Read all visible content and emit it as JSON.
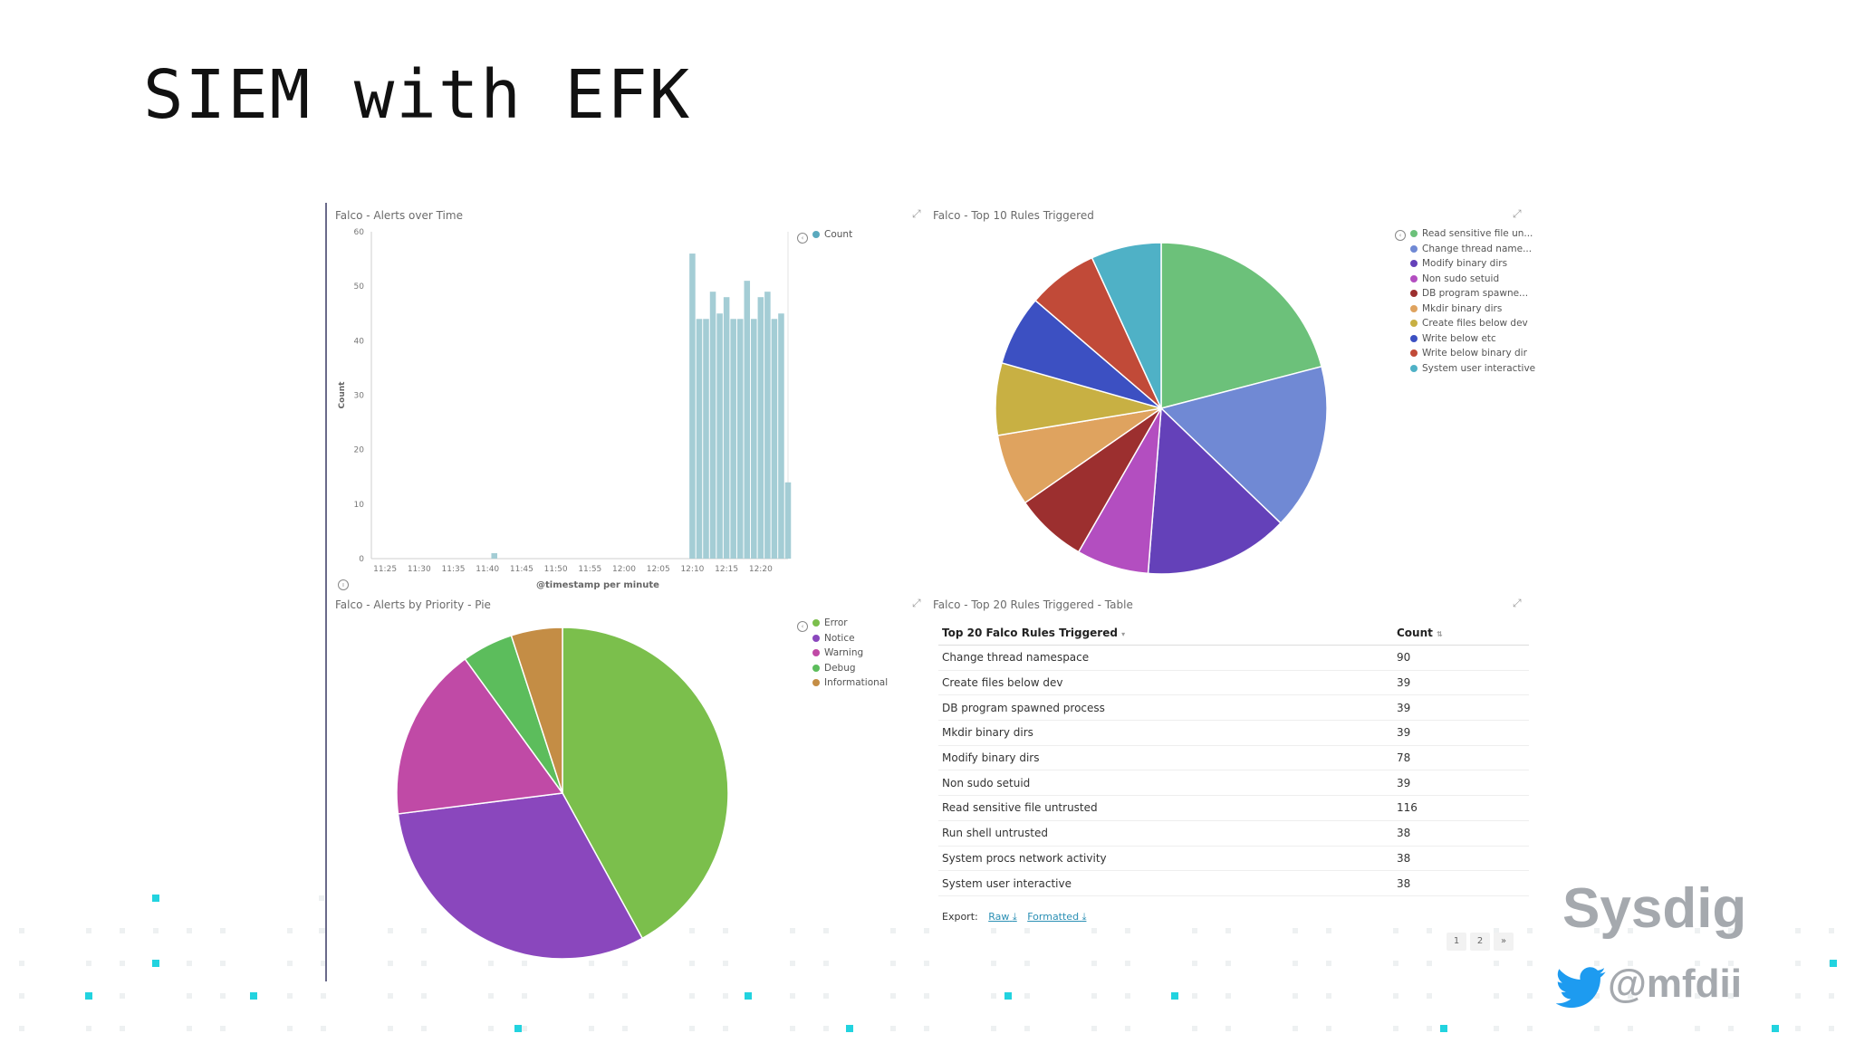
{
  "slide": {
    "title": "SIEM with EFK"
  },
  "bar_panel": {
    "title": "Falco - Alerts over Time",
    "legend": {
      "label": "Count",
      "color": "#9ccbd4"
    },
    "chart_data": {
      "type": "bar",
      "title": "Falco - Alerts over Time",
      "xlabel": "@timestamp per minute",
      "ylabel": "Count",
      "ylim": [
        0,
        60
      ],
      "yticks": [
        "0",
        "10",
        "20",
        "30",
        "40",
        "50",
        "60"
      ],
      "xticks": [
        "11:25",
        "11:30",
        "11:35",
        "11:40",
        "11:45",
        "11:50",
        "11:55",
        "12:00",
        "12:05",
        "12:10",
        "12:15",
        "12:20"
      ],
      "tick_positions_min": [
        0,
        5,
        10,
        15,
        20,
        25,
        30,
        35,
        40,
        45,
        50,
        55
      ],
      "x_min_range": [
        -2,
        59
      ],
      "bars": [
        {
          "min": 16,
          "value": 1
        },
        {
          "min": 45,
          "value": 56
        },
        {
          "min": 46,
          "value": 44
        },
        {
          "min": 47,
          "value": 44
        },
        {
          "min": 48,
          "value": 49
        },
        {
          "min": 49,
          "value": 45
        },
        {
          "min": 50,
          "value": 48
        },
        {
          "min": 51,
          "value": 44
        },
        {
          "min": 52,
          "value": 44
        },
        {
          "min": 53,
          "value": 51
        },
        {
          "min": 54,
          "value": 44
        },
        {
          "min": 55,
          "value": 48
        },
        {
          "min": 56,
          "value": 49
        },
        {
          "min": 57,
          "value": 44
        },
        {
          "min": 58,
          "value": 45
        },
        {
          "min": 59,
          "value": 14
        }
      ],
      "color": "#a4cdd5"
    }
  },
  "rules_pie_panel": {
    "title": "Falco - Top 10 Rules Triggered",
    "chart_data": {
      "type": "pie",
      "title": "Falco - Top 10 Rules Triggered",
      "slices": [
        {
          "label": "Read sensitive file un...",
          "value": 116,
          "color": "#6cc17a"
        },
        {
          "label": "Change thread name...",
          "value": 90,
          "color": "#7089d4"
        },
        {
          "label": "Modify binary dirs",
          "value": 78,
          "color": "#6441b9"
        },
        {
          "label": "Non sudo setuid",
          "value": 39,
          "color": "#b34ec0"
        },
        {
          "label": "DB program spawne...",
          "value": 39,
          "color": "#9c2f2f"
        },
        {
          "label": "Mkdir binary dirs",
          "value": 39,
          "color": "#dfa35f"
        },
        {
          "label": "Create files below dev",
          "value": 39,
          "color": "#c8b043"
        },
        {
          "label": "Write below etc",
          "value": 38,
          "color": "#3c50c2"
        },
        {
          "label": "Write below binary dir",
          "value": 38,
          "color": "#c14a38"
        },
        {
          "label": "System user interactive",
          "value": 38,
          "color": "#4fb1c6"
        }
      ]
    }
  },
  "priority_pie_panel": {
    "title": "Falco - Alerts by Priority - Pie",
    "chart_data": {
      "type": "pie",
      "title": "Falco - Alerts by Priority - Pie",
      "slices": [
        {
          "label": "Error",
          "value": 42,
          "color": "#7bbf4c"
        },
        {
          "label": "Notice",
          "value": 31,
          "color": "#8a47bd"
        },
        {
          "label": "Warning",
          "value": 17,
          "color": "#c04aa6"
        },
        {
          "label": "Debug",
          "value": 5,
          "color": "#5cbd5c"
        },
        {
          "label": "Informational",
          "value": 5,
          "color": "#c48d45"
        }
      ]
    }
  },
  "table_panel": {
    "title": "Falco - Top 20 Rules Triggered - Table",
    "col1_header": "Top 20 Falco Rules Triggered",
    "col2_header": "Count",
    "rows": [
      {
        "rule": "Change thread namespace",
        "count": "90"
      },
      {
        "rule": "Create files below dev",
        "count": "39"
      },
      {
        "rule": "DB program spawned process",
        "count": "39"
      },
      {
        "rule": "Mkdir binary dirs",
        "count": "39"
      },
      {
        "rule": "Modify binary dirs",
        "count": "78"
      },
      {
        "rule": "Non sudo setuid",
        "count": "39"
      },
      {
        "rule": "Read sensitive file untrusted",
        "count": "116"
      },
      {
        "rule": "Run shell untrusted",
        "count": "38"
      },
      {
        "rule": "System procs network activity",
        "count": "38"
      },
      {
        "rule": "System user interactive",
        "count": "38"
      }
    ],
    "export_label": "Export:",
    "export_raw": "Raw",
    "export_formatted": "Formatted",
    "pages": [
      "1",
      "2",
      "»"
    ]
  },
  "branding": {
    "logo_text": "Sysdig",
    "handle": "@mfdii",
    "logo_color": "#a5a9ae",
    "twitter_color": "#1d9bf0"
  }
}
